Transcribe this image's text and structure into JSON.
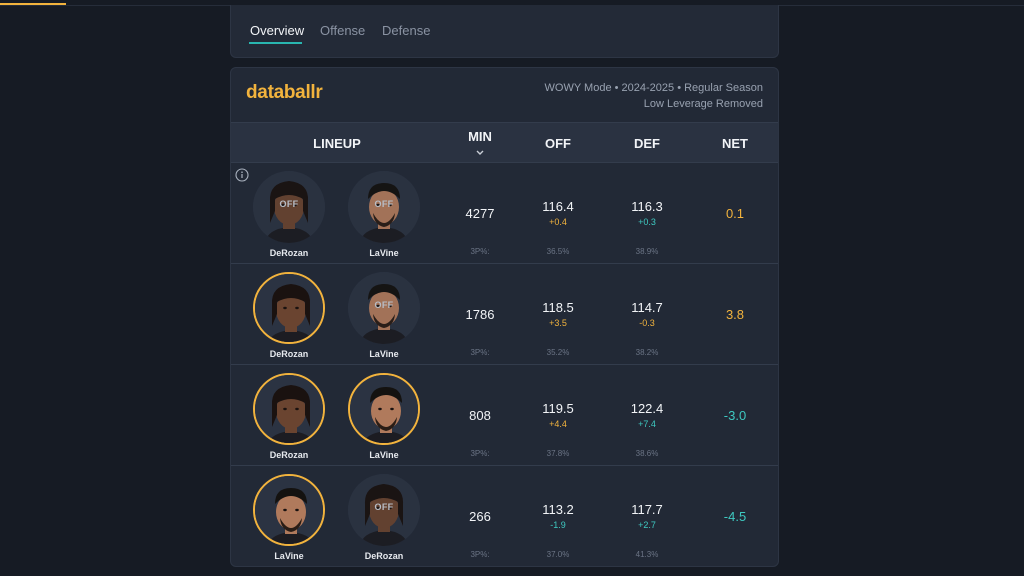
{
  "tabs": [
    {
      "label": "Overview",
      "active": true
    },
    {
      "label": "Offense",
      "active": false
    },
    {
      "label": "Defense",
      "active": false
    }
  ],
  "brand": "databallr",
  "mode": {
    "line1": "WOWY Mode • 2024-2025 • Regular Season",
    "line2": "Low Leverage Removed"
  },
  "columns": {
    "lineup": "LINEUP",
    "min": "MIN",
    "off": "OFF",
    "def": "DEF",
    "net": "NET"
  },
  "colors": {
    "accent": "#f2b33d",
    "teal": "#3ec9c1",
    "tab_underline": "#29b6b0"
  },
  "rows": [
    {
      "players": [
        {
          "name": "DeRozan",
          "status": "OFF",
          "on": false
        },
        {
          "name": "LaVine",
          "status": "OFF",
          "on": false
        }
      ],
      "min": "4277",
      "min_sub": "3P%:",
      "off": "116.4",
      "off_delta": "+0.4",
      "off_sub": "36.5%",
      "def": "116.3",
      "def_delta": "+0.3",
      "def_sub": "38.9%",
      "net": "0.1"
    },
    {
      "players": [
        {
          "name": "DeRozan",
          "status": "",
          "on": true
        },
        {
          "name": "LaVine",
          "status": "OFF",
          "on": false
        }
      ],
      "min": "1786",
      "min_sub": "3P%:",
      "off": "118.5",
      "off_delta": "+3.5",
      "off_sub": "35.2%",
      "def": "114.7",
      "def_delta": "-0.3",
      "def_sub": "38.2%",
      "net": "3.8"
    },
    {
      "players": [
        {
          "name": "DeRozan",
          "status": "",
          "on": true
        },
        {
          "name": "LaVine",
          "status": "",
          "on": true
        }
      ],
      "min": "808",
      "min_sub": "3P%:",
      "off": "119.5",
      "off_delta": "+4.4",
      "off_sub": "37.8%",
      "def": "122.4",
      "def_delta": "+7.4",
      "def_sub": "38.6%",
      "net": "-3.0"
    },
    {
      "players": [
        {
          "name": "LaVine",
          "status": "",
          "on": true
        },
        {
          "name": "DeRozan",
          "status": "OFF",
          "on": false
        }
      ],
      "min": "266",
      "min_sub": "3P%:",
      "off": "113.2",
      "off_delta": "-1.9",
      "off_sub": "37.0%",
      "def": "117.7",
      "def_delta": "+2.7",
      "def_sub": "41.3%",
      "net": "-4.5"
    }
  ]
}
